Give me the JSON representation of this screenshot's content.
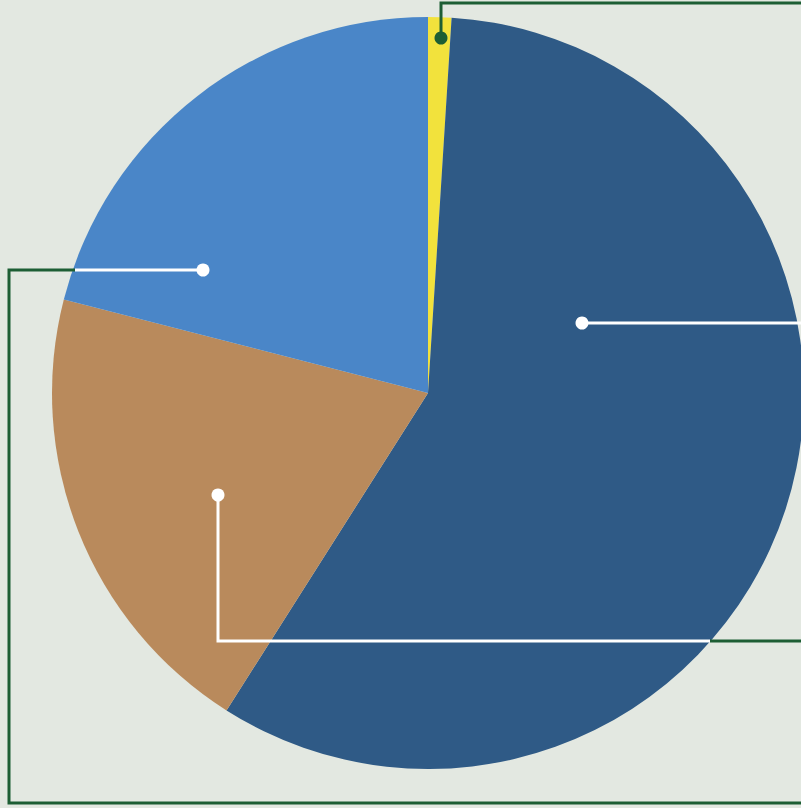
{
  "chart_data": {
    "type": "pie",
    "values": [
      1,
      58,
      20,
      21
    ],
    "colors": [
      "#f2e23c",
      "#2f5a86",
      "#b98a5c",
      "#4a86c8"
    ]
  }
}
